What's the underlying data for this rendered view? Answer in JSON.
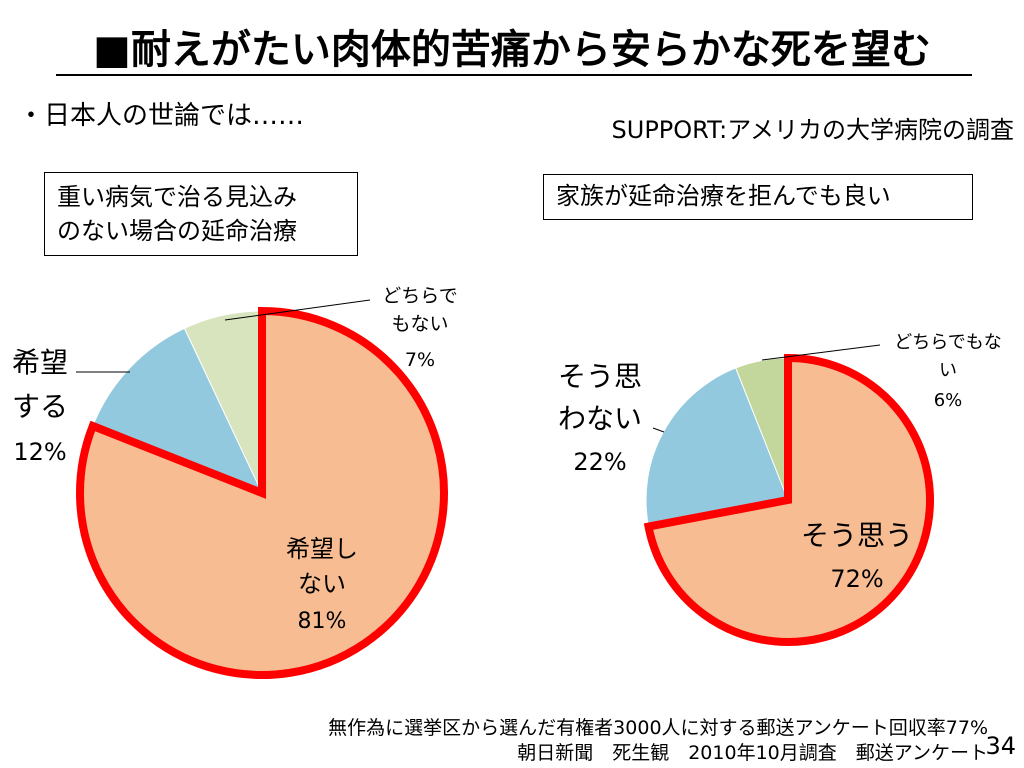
{
  "slide": {
    "title": "■耐えがたい肉体的苦痛から安らかな死を望む",
    "bullet": "・日本人の世論では……",
    "source": "SUPPORT:アメリカの大学病院の調査",
    "footnote1": "無作為に選挙区から選んだ有権者3000人に対する郵送アンケート回収率77%",
    "footnote2": "朝日新聞　死生観　2010年10月調査　郵送アンケート",
    "page_number": "34"
  },
  "chart_data": [
    {
      "type": "pie",
      "title": "重い病気で治る見込みのない場合の延命治療",
      "title_lines": [
        "重い病気で治る見込み",
        "のない場合の延命治療"
      ],
      "slices": [
        {
          "label": "希望しない",
          "label_lines": [
            "希望し",
            "ない"
          ],
          "value": 81,
          "value_text": "81%",
          "color": "#f7bc92",
          "highlighted": true
        },
        {
          "label": "希望する",
          "label_lines": [
            "希望",
            "する"
          ],
          "value": 12,
          "value_text": "12%",
          "color": "#92c9de"
        },
        {
          "label": "どちらでもない",
          "label_lines": [
            "どちらで",
            "もない"
          ],
          "value": 7,
          "value_text": "7%",
          "color": "#d7e4bd"
        }
      ],
      "highlight_color": "#ff0000"
    },
    {
      "type": "pie",
      "title": "家族が延命治療を拒んでも良い",
      "title_lines": [
        "家族が延命治療を拒んでも良い"
      ],
      "slices": [
        {
          "label": "そう思う",
          "label_lines": [
            "そう思う"
          ],
          "value": 72,
          "value_text": "72%",
          "color": "#f7bc92",
          "highlighted": true
        },
        {
          "label": "そう思わない",
          "label_lines": [
            "そう思",
            "わない"
          ],
          "value": 22,
          "value_text": "22%",
          "color": "#92c9de"
        },
        {
          "label": "どちらでもない",
          "label_lines": [
            "どちらでもな",
            "い"
          ],
          "value": 6,
          "value_text": "6%",
          "color": "#c3d69b"
        }
      ],
      "highlight_color": "#ff0000"
    }
  ]
}
